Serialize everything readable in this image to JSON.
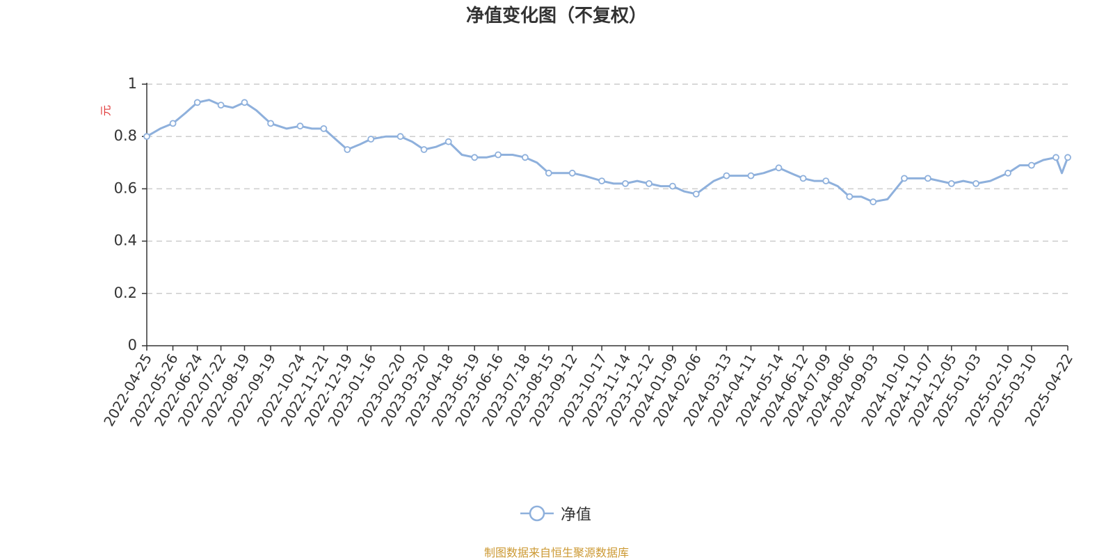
{
  "title": "净值变化图（不复权）",
  "source_note": "制图数据来自恒生聚源数据库",
  "colors": {
    "line": "#8eb0dc",
    "axis": "#333333",
    "grid": "#cccccc",
    "unit": "#e03a3a",
    "source": "#cc9933"
  },
  "chart_data": {
    "type": "line",
    "title": "净值变化图（不复权）",
    "xlabel": "",
    "ylabel": "元",
    "ylim": [
      0,
      1
    ],
    "y_ticks": [
      "0",
      "0.2",
      "0.4",
      "0.6",
      "0.8",
      "1"
    ],
    "grid": true,
    "legend_position": "bottom-center",
    "x_ticks": [
      "2022-04-25",
      "2022-05-26",
      "2022-06-24",
      "2022-07-22",
      "2022-08-19",
      "2022-09-19",
      "2022-10-24",
      "2022-11-21",
      "2022-12-19",
      "2023-01-16",
      "2023-02-20",
      "2023-03-20",
      "2023-04-18",
      "2023-05-19",
      "2023-06-16",
      "2023-07-18",
      "2023-08-15",
      "2023-09-12",
      "2023-10-17",
      "2023-11-14",
      "2023-12-12",
      "2024-01-09",
      "2024-02-06",
      "2024-03-13",
      "2024-04-11",
      "2024-05-14",
      "2024-06-12",
      "2024-07-09",
      "2024-08-06",
      "2024-09-03",
      "2024-10-10",
      "2024-11-07",
      "2024-12-05",
      "2025-01-03",
      "2025-02-10",
      "2025-03-10",
      "2025-04-22"
    ],
    "series": [
      {
        "name": "净值",
        "x": [
          "2022-04-25",
          "2022-05-11",
          "2022-05-26",
          "2022-06-10",
          "2022-06-24",
          "2022-07-08",
          "2022-07-22",
          "2022-08-05",
          "2022-08-19",
          "2022-09-02",
          "2022-09-19",
          "2022-10-08",
          "2022-10-24",
          "2022-11-07",
          "2022-11-21",
          "2022-12-05",
          "2022-12-19",
          "2023-01-03",
          "2023-01-16",
          "2023-02-03",
          "2023-02-20",
          "2023-03-06",
          "2023-03-20",
          "2023-04-03",
          "2023-04-18",
          "2023-05-04",
          "2023-05-19",
          "2023-06-02",
          "2023-06-16",
          "2023-07-03",
          "2023-07-18",
          "2023-08-01",
          "2023-08-15",
          "2023-08-29",
          "2023-09-12",
          "2023-09-26",
          "2023-10-17",
          "2023-10-31",
          "2023-11-14",
          "2023-11-28",
          "2023-12-12",
          "2023-12-26",
          "2024-01-09",
          "2024-01-23",
          "2024-02-06",
          "2024-02-27",
          "2024-03-13",
          "2024-03-27",
          "2024-04-11",
          "2024-04-26",
          "2024-05-14",
          "2024-05-28",
          "2024-06-12",
          "2024-06-25",
          "2024-07-09",
          "2024-07-23",
          "2024-08-06",
          "2024-08-20",
          "2024-09-03",
          "2024-09-20",
          "2024-10-10",
          "2024-10-24",
          "2024-11-07",
          "2024-11-21",
          "2024-12-05",
          "2024-12-19",
          "2025-01-03",
          "2025-01-20",
          "2025-02-10",
          "2025-02-24",
          "2025-03-10",
          "2025-03-24",
          "2025-04-08",
          "2025-04-15",
          "2025-04-22"
        ],
        "values": [
          0.8,
          0.83,
          0.85,
          0.89,
          0.93,
          0.94,
          0.92,
          0.91,
          0.93,
          0.9,
          0.85,
          0.83,
          0.84,
          0.83,
          0.83,
          0.79,
          0.75,
          0.77,
          0.79,
          0.8,
          0.8,
          0.78,
          0.75,
          0.76,
          0.78,
          0.73,
          0.72,
          0.72,
          0.73,
          0.73,
          0.72,
          0.7,
          0.66,
          0.66,
          0.66,
          0.65,
          0.63,
          0.62,
          0.62,
          0.63,
          0.62,
          0.61,
          0.61,
          0.59,
          0.58,
          0.63,
          0.65,
          0.65,
          0.65,
          0.66,
          0.68,
          0.66,
          0.64,
          0.63,
          0.63,
          0.61,
          0.57,
          0.57,
          0.55,
          0.56,
          0.64,
          0.64,
          0.64,
          0.63,
          0.62,
          0.63,
          0.62,
          0.63,
          0.66,
          0.69,
          0.69,
          0.71,
          0.72,
          0.66,
          0.72
        ]
      }
    ]
  }
}
